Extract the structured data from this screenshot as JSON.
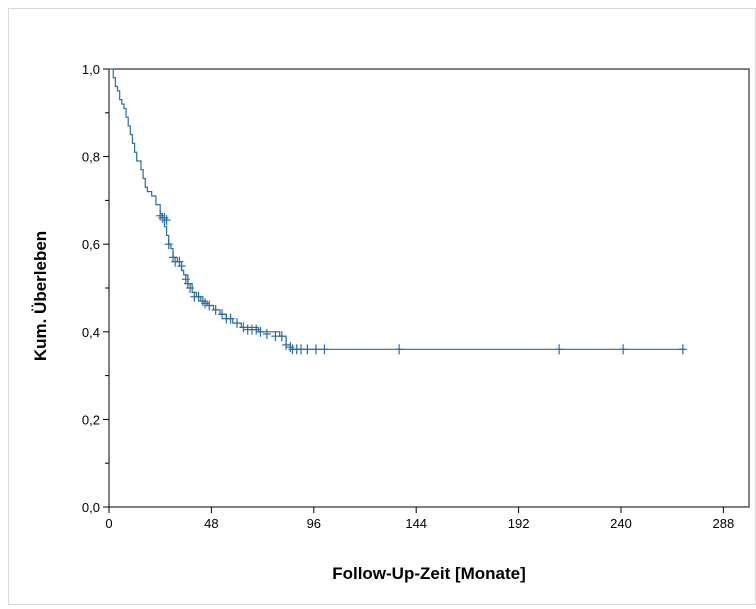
{
  "chart_data": {
    "type": "line",
    "title": "",
    "xlabel": "Follow-Up-Zeit [Monate]",
    "ylabel": "Kum. Überleben",
    "xlim": [
      0,
      300
    ],
    "ylim": [
      0,
      1.0
    ],
    "x_ticks": [
      0,
      48,
      96,
      144,
      192,
      240,
      288
    ],
    "x_tick_labels": [
      "0",
      "48",
      "96",
      "144",
      "192",
      "240",
      "288"
    ],
    "y_ticks": [
      0,
      0.2,
      0.4,
      0.6,
      0.8,
      1.0
    ],
    "y_tick_labels": [
      "0,0",
      "0,2",
      "0,4",
      "0,6",
      "0,8",
      "1,0"
    ],
    "grid": false,
    "legend": "none",
    "line_color": "#2e6b9e",
    "series": [
      {
        "step_points": [
          [
            0,
            1.0
          ],
          [
            2,
            0.98
          ],
          [
            3,
            0.96
          ],
          [
            4,
            0.95
          ],
          [
            5,
            0.93
          ],
          [
            6,
            0.92
          ],
          [
            7,
            0.91
          ],
          [
            8,
            0.89
          ],
          [
            9,
            0.87
          ],
          [
            10,
            0.85
          ],
          [
            11,
            0.83
          ],
          [
            12,
            0.81
          ],
          [
            13,
            0.79
          ],
          [
            15,
            0.77
          ],
          [
            16,
            0.75
          ],
          [
            17,
            0.73
          ],
          [
            18,
            0.72
          ],
          [
            20,
            0.71
          ],
          [
            22,
            0.69
          ],
          [
            24,
            0.67
          ],
          [
            25,
            0.66
          ],
          [
            26,
            0.64
          ],
          [
            27,
            0.62
          ],
          [
            28,
            0.6
          ],
          [
            29,
            0.59
          ],
          [
            30,
            0.57
          ],
          [
            32,
            0.56
          ],
          [
            34,
            0.54
          ],
          [
            35,
            0.53
          ],
          [
            37,
            0.51
          ],
          [
            39,
            0.49
          ],
          [
            41,
            0.48
          ],
          [
            43,
            0.47
          ],
          [
            46,
            0.46
          ],
          [
            49,
            0.45
          ],
          [
            52,
            0.44
          ],
          [
            55,
            0.43
          ],
          [
            58,
            0.42
          ],
          [
            62,
            0.41
          ],
          [
            70,
            0.4
          ],
          [
            80,
            0.39
          ],
          [
            83,
            0.37
          ],
          [
            85,
            0.36
          ],
          [
            270,
            0.36
          ]
        ],
        "censored": [
          [
            24,
            0.665
          ],
          [
            25,
            0.66
          ],
          [
            26,
            0.66
          ],
          [
            27,
            0.655
          ],
          [
            28,
            0.6
          ],
          [
            30,
            0.57
          ],
          [
            31,
            0.56
          ],
          [
            33,
            0.56
          ],
          [
            34,
            0.55
          ],
          [
            36,
            0.52
          ],
          [
            37,
            0.51
          ],
          [
            38,
            0.5
          ],
          [
            40,
            0.48
          ],
          [
            42,
            0.48
          ],
          [
            44,
            0.47
          ],
          [
            45,
            0.465
          ],
          [
            47,
            0.46
          ],
          [
            50,
            0.45
          ],
          [
            53,
            0.44
          ],
          [
            55,
            0.43
          ],
          [
            57,
            0.43
          ],
          [
            60,
            0.42
          ],
          [
            63,
            0.41
          ],
          [
            65,
            0.405
          ],
          [
            67,
            0.405
          ],
          [
            69,
            0.405
          ],
          [
            71,
            0.4
          ],
          [
            74,
            0.395
          ],
          [
            78,
            0.39
          ],
          [
            81,
            0.39
          ],
          [
            83,
            0.37
          ],
          [
            85,
            0.365
          ],
          [
            86,
            0.36
          ],
          [
            88,
            0.36
          ],
          [
            90,
            0.36
          ],
          [
            93,
            0.36
          ],
          [
            97,
            0.36
          ],
          [
            101,
            0.36
          ],
          [
            136,
            0.36
          ],
          [
            211,
            0.36
          ],
          [
            241,
            0.36
          ],
          [
            269,
            0.36
          ]
        ]
      }
    ]
  }
}
